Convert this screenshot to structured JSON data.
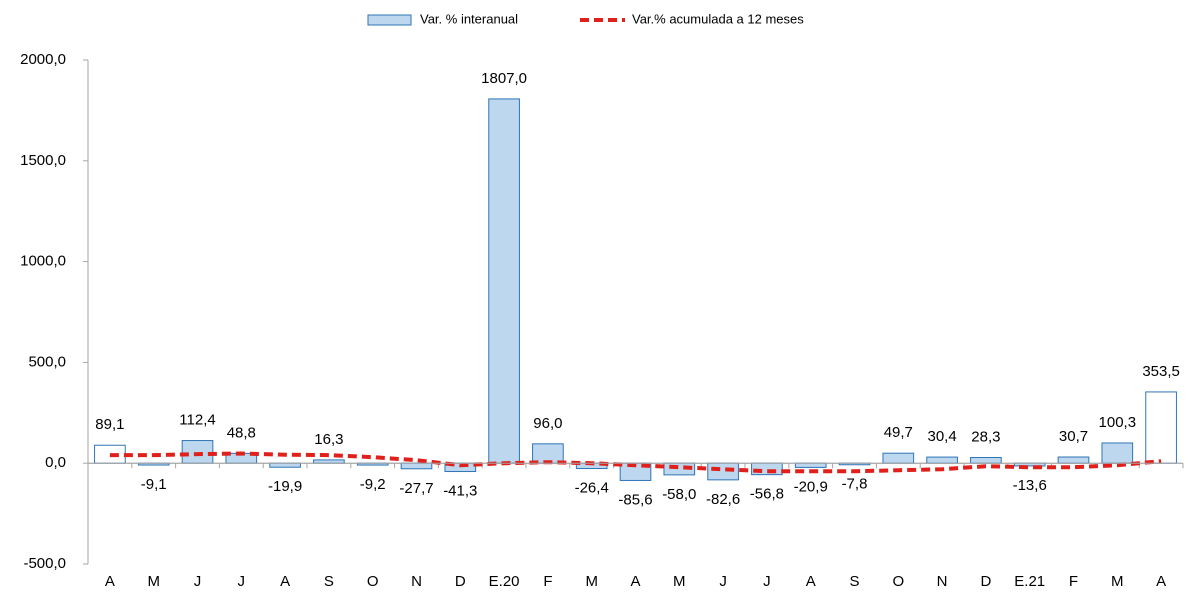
{
  "chart_data": {
    "type": "bar",
    "categories": [
      "A",
      "M",
      "J",
      "J",
      "A",
      "S",
      "O",
      "N",
      "D",
      "E.20",
      "F",
      "M",
      "A",
      "M",
      "J",
      "J",
      "A",
      "S",
      "O",
      "N",
      "D",
      "E.21",
      "F",
      "M",
      "A"
    ],
    "series": [
      {
        "name": "Var. % interanual",
        "type": "bar",
        "color": "#bdd7ee",
        "edge_color": "#2e75b6",
        "bar_colors": [
          "#ffffff",
          "#bdd7ee",
          "#bdd7ee",
          "#bdd7ee",
          "#bdd7ee",
          "#bdd7ee",
          "#bdd7ee",
          "#bdd7ee",
          "#bdd7ee",
          "#bdd7ee",
          "#bdd7ee",
          "#bdd7ee",
          "#bdd7ee",
          "#bdd7ee",
          "#bdd7ee",
          "#bdd7ee",
          "#bdd7ee",
          "#bdd7ee",
          "#bdd7ee",
          "#bdd7ee",
          "#bdd7ee",
          "#bdd7ee",
          "#bdd7ee",
          "#bdd7ee",
          "#ffffff"
        ],
        "values": [
          89.1,
          -9.1,
          112.4,
          48.8,
          -19.9,
          16.3,
          -9.2,
          -27.7,
          -41.3,
          1807.0,
          96.0,
          -26.4,
          -85.6,
          -58.0,
          -82.6,
          -56.8,
          -20.9,
          -7.8,
          49.7,
          30.4,
          28.3,
          -13.6,
          30.7,
          100.3,
          353.5
        ],
        "value_labels": [
          "89,1",
          "-9,1",
          "112,4",
          "48,8",
          "-19,9",
          "16,3",
          "-9,2",
          "-27,7",
          "-41,3",
          "1807,0",
          "96,0",
          "-26,4",
          "-85,6",
          "-58,0",
          "-82,6",
          "-56,8",
          "-20,9",
          "-7,8",
          "49,7",
          "30,4",
          "28,3",
          "-13,6",
          "30,7",
          "100,3",
          "353,5"
        ]
      },
      {
        "name": "Var.% acumulada a 12 meses",
        "type": "line",
        "color": "#e0201b",
        "values": [
          40,
          40,
          45,
          48,
          42,
          40,
          30,
          15,
          -10,
          0,
          5,
          0,
          -10,
          -20,
          -30,
          -40,
          -40,
          -40,
          -35,
          -30,
          -15,
          -20,
          -20,
          -10,
          10
        ]
      }
    ],
    "ylim": [
      -500,
      2000
    ],
    "yticks": [
      {
        "value": -500,
        "label": "-500,0"
      },
      {
        "value": 0,
        "label": "0,0"
      },
      {
        "value": 500,
        "label": "500,0"
      },
      {
        "value": 1000,
        "label": "1000,0"
      },
      {
        "value": 1500,
        "label": "1500,0"
      },
      {
        "value": 2000,
        "label": "2000,0"
      }
    ],
    "legend": "top"
  }
}
